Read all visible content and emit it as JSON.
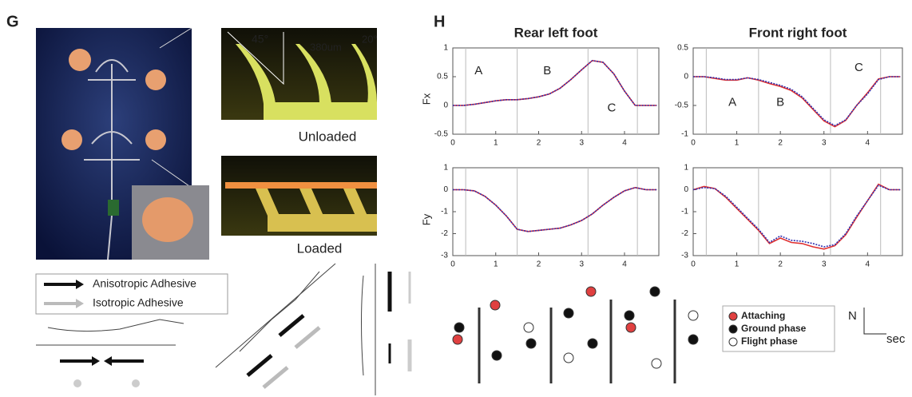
{
  "panels": {
    "g_label": "G",
    "h_label": "H"
  },
  "photo_labels": {
    "angle_left": "45°",
    "width": "380um",
    "angle_right": "20°",
    "unloaded": "Unloaded",
    "loaded": "Loaded"
  },
  "adhesive_legend": [
    "Anisotropic Adhesive",
    "Isotropic Adhesive"
  ],
  "phase_legend": [
    "Attaching",
    "Ground phase",
    "Flight phase"
  ],
  "axis_key": {
    "y": "N",
    "x": "sec"
  },
  "chart_data": [
    {
      "type": "line",
      "title": "Rear left foot",
      "ylabel": "Fx",
      "annotations": [
        "A",
        "B",
        "C"
      ],
      "x": [
        0,
        0.25,
        0.5,
        0.75,
        1,
        1.25,
        1.5,
        1.75,
        2,
        2.25,
        2.5,
        2.75,
        3,
        3.25,
        3.5,
        3.75,
        4,
        4.25,
        4.5,
        4.75
      ],
      "series": [
        {
          "color": "#e03030",
          "values": [
            0,
            0,
            0.02,
            0.05,
            0.08,
            0.1,
            0.1,
            0.12,
            0.15,
            0.2,
            0.3,
            0.45,
            0.62,
            0.78,
            0.75,
            0.55,
            0.25,
            0,
            0,
            0
          ]
        },
        {
          "color": "#3030b0",
          "values": [
            0,
            0,
            0.02,
            0.05,
            0.08,
            0.1,
            0.1,
            0.12,
            0.15,
            0.2,
            0.3,
            0.45,
            0.62,
            0.78,
            0.75,
            0.55,
            0.25,
            0,
            0,
            0
          ]
        }
      ],
      "phase_lines": [
        0.3,
        1.5,
        3.15,
        4.3
      ],
      "xlim": [
        0,
        4.8
      ],
      "xticks": [
        0,
        1,
        2,
        3,
        4
      ],
      "ylim": [
        -0.5,
        1
      ],
      "yticks": [
        -0.5,
        0,
        0.5,
        1
      ]
    },
    {
      "type": "line",
      "title": "Front right foot",
      "annotations": [
        "A",
        "B",
        "C"
      ],
      "x": [
        0,
        0.25,
        0.5,
        0.75,
        1,
        1.25,
        1.5,
        1.75,
        2,
        2.25,
        2.5,
        2.75,
        3,
        3.25,
        3.5,
        3.75,
        4,
        4.25,
        4.5,
        4.75
      ],
      "series": [
        {
          "color": "#e03030",
          "values": [
            0,
            0,
            -0.03,
            -0.06,
            -0.06,
            -0.02,
            -0.06,
            -0.12,
            -0.17,
            -0.24,
            -0.37,
            -0.57,
            -0.77,
            -0.87,
            -0.76,
            -0.5,
            -0.28,
            -0.04,
            0,
            0
          ]
        },
        {
          "color": "#3030b0",
          "values": [
            0,
            0,
            -0.02,
            -0.05,
            -0.05,
            -0.02,
            -0.05,
            -0.1,
            -0.15,
            -0.22,
            -0.35,
            -0.55,
            -0.75,
            -0.85,
            -0.75,
            -0.5,
            -0.3,
            -0.05,
            0,
            0
          ]
        }
      ],
      "phase_lines": [
        0.3,
        1.5,
        3.15,
        4.3
      ],
      "xlim": [
        0,
        4.8
      ],
      "xticks": [
        0,
        1,
        2,
        3,
        4
      ],
      "ylim": [
        -1,
        0.5
      ],
      "yticks": [
        -1,
        -0.5,
        0,
        0.5
      ]
    },
    {
      "type": "line",
      "ylabel": "Fy",
      "x": [
        0,
        0.25,
        0.5,
        0.75,
        1,
        1.25,
        1.5,
        1.75,
        2,
        2.25,
        2.5,
        2.75,
        3,
        3.25,
        3.5,
        3.75,
        4,
        4.25,
        4.5,
        4.75
      ],
      "series": [
        {
          "color": "#e03030",
          "values": [
            0,
            0,
            -0.05,
            -0.3,
            -0.7,
            -1.2,
            -1.8,
            -1.9,
            -1.85,
            -1.8,
            -1.75,
            -1.6,
            -1.4,
            -1.1,
            -0.7,
            -0.35,
            -0.05,
            0.1,
            0,
            0
          ]
        },
        {
          "color": "#3030b0",
          "values": [
            0,
            0,
            -0.05,
            -0.3,
            -0.7,
            -1.2,
            -1.8,
            -1.9,
            -1.85,
            -1.8,
            -1.75,
            -1.6,
            -1.4,
            -1.1,
            -0.7,
            -0.35,
            -0.05,
            0.1,
            0,
            0
          ]
        }
      ],
      "phase_lines": [
        0.3,
        1.5,
        3.15,
        4.3
      ],
      "xlim": [
        0,
        4.8
      ],
      "xticks": [
        0,
        1,
        2,
        3,
        4
      ],
      "ylim": [
        -3,
        1
      ],
      "yticks": [
        -3,
        -2,
        -1,
        0,
        1
      ]
    },
    {
      "type": "line",
      "x": [
        0,
        0.25,
        0.5,
        0.75,
        1,
        1.25,
        1.5,
        1.75,
        2,
        2.25,
        2.5,
        2.75,
        3,
        3.25,
        3.5,
        3.75,
        4,
        4.25,
        4.5,
        4.75
      ],
      "series": [
        {
          "color": "#e03030",
          "values": [
            0,
            0.15,
            0.05,
            -0.35,
            -0.85,
            -1.35,
            -1.85,
            -2.45,
            -2.2,
            -2.4,
            -2.45,
            -2.6,
            -2.7,
            -2.55,
            -2.05,
            -1.25,
            -0.5,
            0.25,
            0,
            0
          ]
        },
        {
          "color": "#3030b0",
          "values": [
            0,
            0.1,
            0.05,
            -0.3,
            -0.8,
            -1.3,
            -1.8,
            -2.4,
            -2.1,
            -2.3,
            -2.35,
            -2.45,
            -2.6,
            -2.5,
            -2.0,
            -1.2,
            -0.5,
            0.2,
            0,
            0
          ]
        }
      ],
      "phase_lines": [
        0.3,
        1.5,
        3.15,
        4.3
      ],
      "xlim": [
        0,
        4.8
      ],
      "xticks": [
        0,
        1,
        2,
        3,
        4
      ],
      "ylim": [
        -3,
        1
      ],
      "yticks": [
        -3,
        -2,
        -1,
        0,
        1
      ]
    }
  ]
}
